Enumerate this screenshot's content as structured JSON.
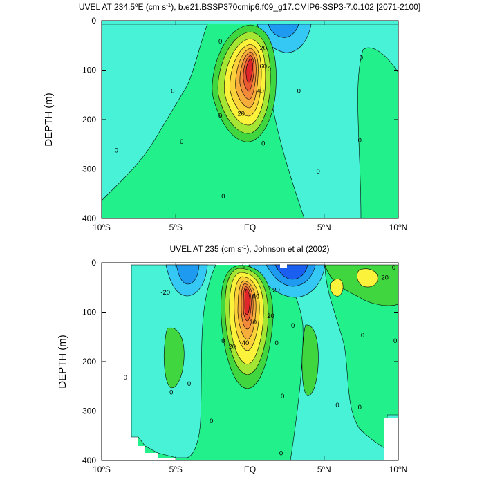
{
  "chart_data": [
    {
      "type": "heatmap",
      "title_main": "UVEL AT 234.5",
      "title_sup_deg": "o",
      "title_unit_pre": "E (cm s",
      "title_unit_exp": "-1",
      "title_rest": "), b.e21.BSSP370cmip6.f09_g17.CMIP6-SSP3-7.0.102 [2071-2100]",
      "ylabel": "DEPTH (m)",
      "xlim": [
        -10,
        10
      ],
      "ylim": [
        0,
        400
      ],
      "xticks": [
        {
          "v": -10,
          "main": "10",
          "deg": "o",
          "suf": "S"
        },
        {
          "v": -5,
          "main": "5",
          "deg": "o",
          "suf": "S"
        },
        {
          "v": 0,
          "main": "EQ",
          "deg": "",
          "suf": ""
        },
        {
          "v": 5,
          "main": "5",
          "deg": "o",
          "suf": "N"
        },
        {
          "v": 10,
          "main": "10",
          "deg": "o",
          "suf": "N"
        }
      ],
      "yticks": [
        0,
        100,
        200,
        300,
        400
      ],
      "contour_interval": 10,
      "core": {
        "lat": 0,
        "depth": 95,
        "max_cm_s": 80
      },
      "contour_labels": [
        {
          "lat": -2.0,
          "depth": 42,
          "text": "0"
        },
        {
          "lat": 0.9,
          "depth": 55,
          "text": "20"
        },
        {
          "lat": 0.9,
          "depth": 92,
          "text": "60"
        },
        {
          "lat": 0.7,
          "depth": 142,
          "text": "40"
        },
        {
          "lat": -0.6,
          "depth": 188,
          "text": "20"
        },
        {
          "lat": -5.2,
          "depth": 142,
          "text": "0"
        },
        {
          "lat": 1.3,
          "depth": 98,
          "text": "0"
        },
        {
          "lat": 3.3,
          "depth": 142,
          "text": "0"
        },
        {
          "lat": -2.0,
          "depth": 192,
          "text": "0"
        },
        {
          "lat": -4.6,
          "depth": 245,
          "text": "0"
        },
        {
          "lat": 0.9,
          "depth": 248,
          "text": "0"
        },
        {
          "lat": 7.5,
          "depth": 75,
          "text": "0"
        },
        {
          "lat": 7.4,
          "depth": 242,
          "text": "0"
        },
        {
          "lat": 4.6,
          "depth": 305,
          "text": "0"
        },
        {
          "lat": -9.0,
          "depth": 262,
          "text": "0"
        },
        {
          "lat": -1.8,
          "depth": 355,
          "text": "0"
        }
      ]
    },
    {
      "type": "heatmap",
      "title_main": "UVEL AT 235 (cm s",
      "title_sup_deg": "",
      "title_unit_pre": "",
      "title_unit_exp": "-1",
      "title_rest": "), Johnson et al (2002)",
      "ylabel": "DEPTH (m)",
      "xlim": [
        -10,
        10
      ],
      "ylim": [
        0,
        400
      ],
      "xticks": [
        {
          "v": -10,
          "main": "10",
          "deg": "o",
          "suf": "S"
        },
        {
          "v": -5,
          "main": "5",
          "deg": "o",
          "suf": "S"
        },
        {
          "v": 0,
          "main": "EQ",
          "deg": "",
          "suf": ""
        },
        {
          "v": 5,
          "main": "5",
          "deg": "o",
          "suf": "N"
        },
        {
          "v": 10,
          "main": "10",
          "deg": "o",
          "suf": "N"
        }
      ],
      "yticks": [
        0,
        100,
        200,
        300,
        400
      ],
      "contour_interval": 10,
      "core": {
        "lat": 0,
        "depth": 85,
        "max_cm_s": 90
      },
      "contour_labels": [
        {
          "lat": -5.7,
          "depth": 60,
          "text": "-20"
        },
        {
          "lat": -0.4,
          "depth": 5,
          "text": "0"
        },
        {
          "lat": 0.4,
          "depth": 68,
          "text": "80"
        },
        {
          "lat": 1.4,
          "depth": 108,
          "text": "20"
        },
        {
          "lat": -0.3,
          "depth": 162,
          "text": "40"
        },
        {
          "lat": 0.2,
          "depth": 120,
          "text": "60"
        },
        {
          "lat": -1.2,
          "depth": 170,
          "text": "20"
        },
        {
          "lat": 1.7,
          "depth": 55,
          "text": "-20"
        },
        {
          "lat": 9.1,
          "depth": 30,
          "text": "20"
        },
        {
          "lat": 2.9,
          "depth": 127,
          "text": "0"
        },
        {
          "lat": -1.8,
          "depth": 158,
          "text": "0"
        },
        {
          "lat": 1.8,
          "depth": 162,
          "text": "0"
        },
        {
          "lat": 7.6,
          "depth": 147,
          "text": "0"
        },
        {
          "lat": 9.8,
          "depth": 158,
          "text": "0"
        },
        {
          "lat": -8.4,
          "depth": 232,
          "text": "0"
        },
        {
          "lat": -5.3,
          "depth": 262,
          "text": "0"
        },
        {
          "lat": -4.1,
          "depth": 245,
          "text": "0"
        },
        {
          "lat": 2.2,
          "depth": 270,
          "text": "0"
        },
        {
          "lat": 5.9,
          "depth": 288,
          "text": "0"
        },
        {
          "lat": 7.4,
          "depth": 292,
          "text": "0"
        },
        {
          "lat": -2.6,
          "depth": 320,
          "text": "0"
        },
        {
          "lat": 2.1,
          "depth": 385,
          "text": "0"
        },
        {
          "lat": 9.7,
          "depth": 10,
          "text": "0"
        }
      ]
    }
  ]
}
